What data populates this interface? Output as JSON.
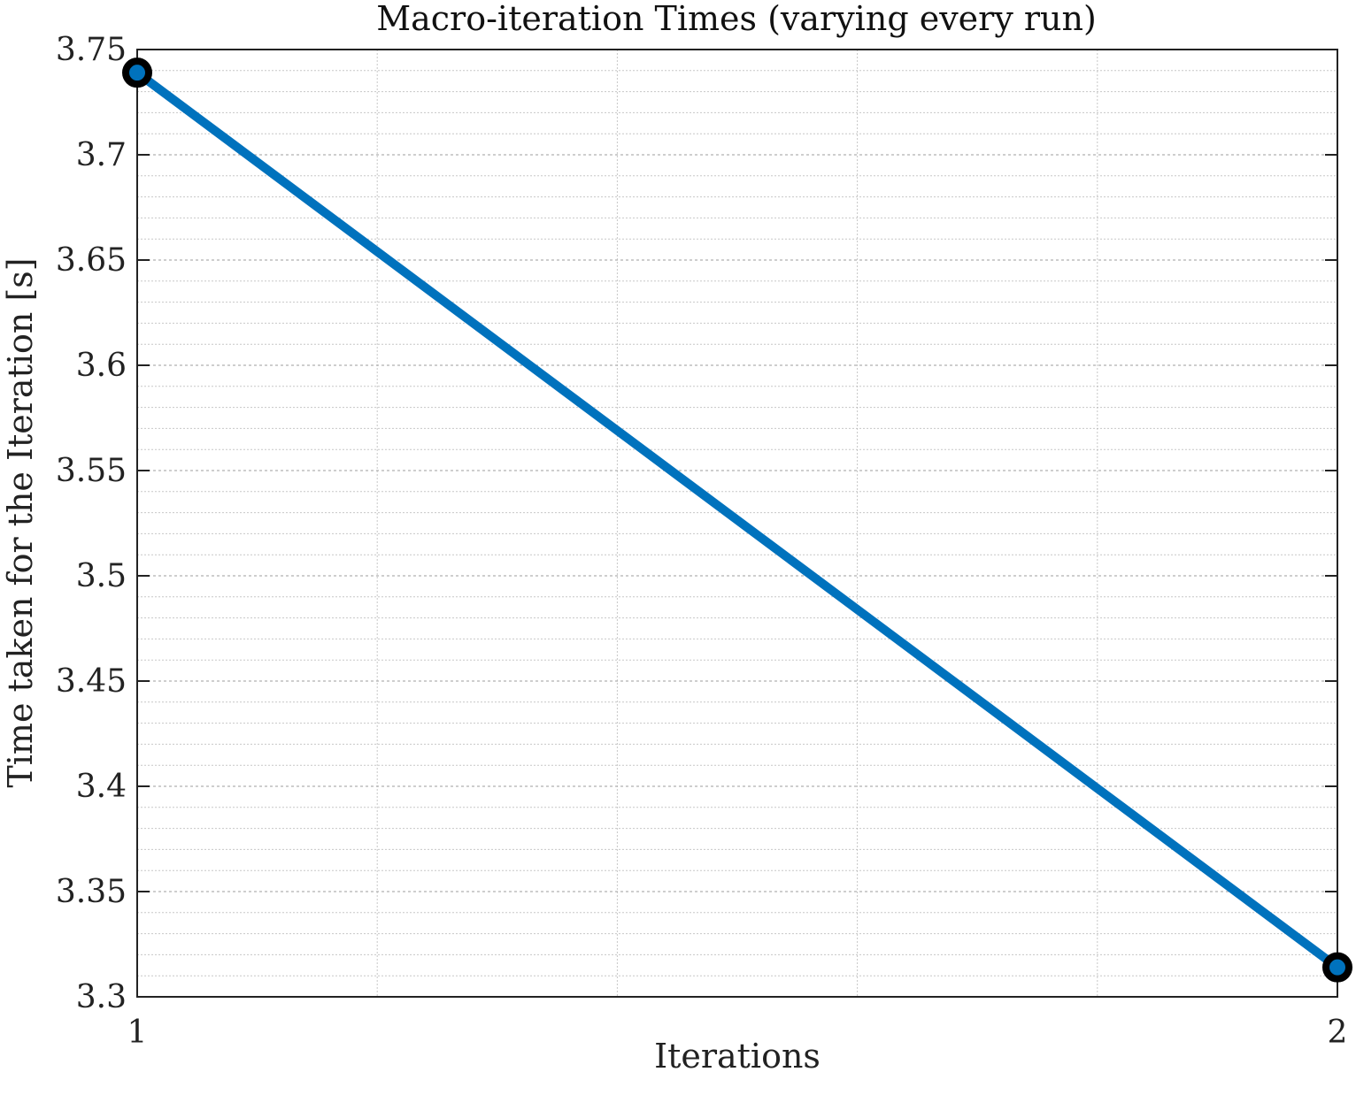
{
  "chart_data": {
    "type": "line",
    "title": "Macro-iteration Times (varying every run)",
    "xlabel": "Iterations",
    "ylabel": "Time taken for the Iteration [s]",
    "x": [
      1,
      2
    ],
    "series": [
      {
        "values": [
          3.739,
          3.314
        ],
        "color": "#0072BD",
        "marker": "circle",
        "marker_edge_color": "#000000"
      }
    ],
    "xlim": [
      1,
      2
    ],
    "ylim": [
      3.3,
      3.75
    ],
    "x_ticks": [
      1,
      2
    ],
    "x_tick_labels": [
      "1",
      "2"
    ],
    "x_minor_ticks": [
      1.2,
      1.4,
      1.6,
      1.8
    ],
    "y_ticks": [
      3.3,
      3.35,
      3.4,
      3.45,
      3.5,
      3.55,
      3.6,
      3.65,
      3.7,
      3.75
    ],
    "y_tick_labels": [
      "3.3",
      "3.35",
      "3.4",
      "3.45",
      "3.5",
      "3.55",
      "3.6",
      "3.65",
      "3.7",
      "3.75"
    ],
    "y_minor_step": 0.01,
    "grid": true,
    "minor_grid": true,
    "colors": {
      "line": "#0072BD",
      "marker_edge": "#000000",
      "grid": "#b0b0b0",
      "axes": "#222222"
    }
  }
}
